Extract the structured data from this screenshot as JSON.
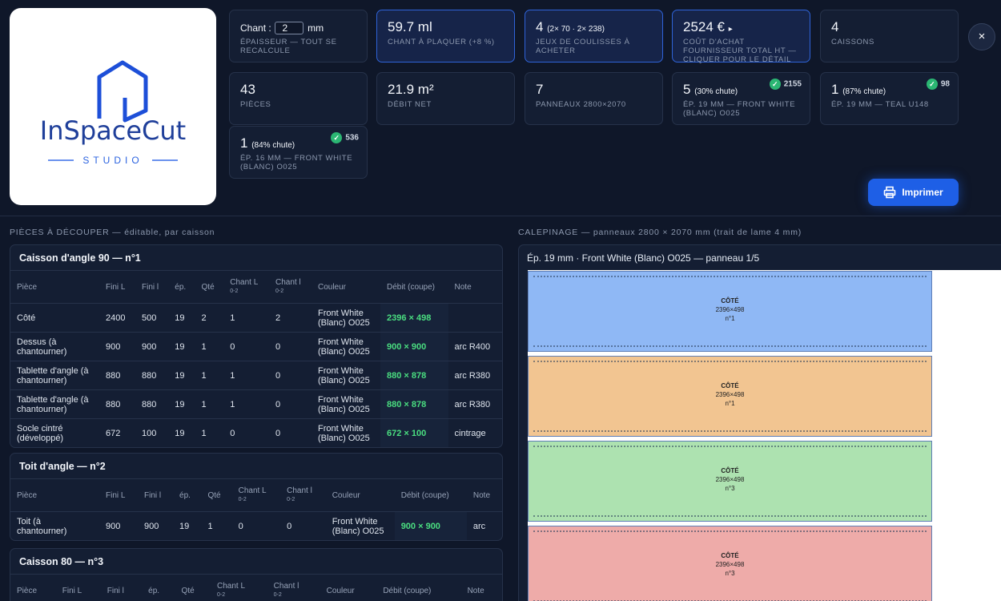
{
  "logo": {
    "name": "InSpaceCut",
    "sub": "STUDIO"
  },
  "stats": [
    {
      "prefix": "Chant :",
      "value": 2,
      "unit": "mm",
      "label": "ÉPAISSEUR — TOUT SE RECALCULE"
    },
    {
      "value": "59.7 ml",
      "label": "CHANT À PLAQUER (+8 %)",
      "highlight": true
    },
    {
      "value": 4,
      "small": "(2× 70 · 2× 238)",
      "label": "JEUX DE COULISSES À ACHETER",
      "highlight": true
    },
    {
      "value": "2524 €",
      "suffix": "▸",
      "label": "COÛT D'ACHAT FOURNISSEUR TOTAL HT — CLIQUER POUR LE DÉTAIL",
      "highlight": true
    },
    {
      "value": 4,
      "label": "CAISSONS"
    },
    {
      "value": 43,
      "label": "PIÈCES"
    },
    {
      "value": "21.9 m²",
      "label": "DÉBIT NET"
    },
    {
      "value": 7,
      "label": "PANNEAUX 2800×2070"
    },
    {
      "value": 5,
      "small": "(30% chute)",
      "badge": 2155,
      "label": "ÉP. 19 MM — FRONT WHITE (BLANC) O025"
    },
    {
      "value": 1,
      "small": "(87% chute)",
      "badge": 98,
      "label": "ÉP. 19 MM — TEAL U148"
    },
    {
      "value": 1,
      "small": "(84% chute)",
      "badge": 536,
      "label": "ÉP. 16 MM — FRONT WHITE (BLANC) O025"
    }
  ],
  "close": "×",
  "print": "Imprimer",
  "pieces": {
    "title": "PIÈCES À DÉCOUPER — éditable, par caisson",
    "columns": [
      {
        "text": "Pièce"
      },
      {
        "text": "Fini L"
      },
      {
        "text": "Fini l"
      },
      {
        "text": "ép."
      },
      {
        "text": "Qté"
      },
      {
        "text": "Chant L",
        "sub": "0-2"
      },
      {
        "text": "Chant l",
        "sub": "0-2"
      },
      {
        "text": "Couleur"
      },
      {
        "text": "Débit (coupe)"
      },
      {
        "text": "Note"
      }
    ],
    "groups": [
      {
        "title": "Caisson d'angle 90 — n°1",
        "rows": [
          [
            "Côté",
            2400,
            500,
            19,
            2,
            1,
            2,
            "Front White (Blanc) O025",
            "2396 × 498"
          ],
          [
            "Dessus (à chantourner)",
            900,
            900,
            19,
            1,
            0,
            0,
            "Front White (Blanc) O025",
            "900 × 900",
            "arc R400"
          ],
          [
            "Tablette d'angle (à chantourner)",
            880,
            880,
            19,
            1,
            1,
            0,
            "Front White (Blanc) O025",
            "880 × 878",
            "arc R380"
          ],
          [
            "Tablette d'angle (à chantourner)",
            880,
            880,
            19,
            1,
            1,
            0,
            "Front White (Blanc) O025",
            "880 × 878",
            "arc R380"
          ],
          [
            "Socle cintré (développé)",
            672,
            100,
            19,
            1,
            0,
            0,
            "Front White (Blanc) O025",
            "672 × 100",
            "cintrage"
          ]
        ]
      },
      {
        "title": "Toit d'angle — n°2",
        "rows": [
          [
            "Toit (à chantourner)",
            900,
            900,
            19,
            1,
            0,
            0,
            "Front White (Blanc) O025",
            "900 × 900",
            "arc"
          ]
        ]
      },
      {
        "title": "Caisson 80 — n°3",
        "rows": []
      }
    ]
  },
  "layout": {
    "title": "CALEPINAGE — panneaux 2800 × 2070 mm (trait de lame 4 mm)",
    "panel": "Ép. 19 mm · Front White (Blanc) O025 — panneau 1/5",
    "parts": [
      {
        "name": "CÔTÉ",
        "size": "2396×498",
        "num": "n°1",
        "color": "#8fb8f5"
      },
      {
        "name": "CÔTÉ",
        "size": "2396×498",
        "num": "n°1",
        "color": "#f2c591"
      },
      {
        "name": "CÔTÉ",
        "size": "2396×498",
        "num": "n°3",
        "color": "#ade2b0"
      },
      {
        "name": "CÔTÉ",
        "size": "2396×498",
        "num": "n°3",
        "color": "#eeaba9"
      }
    ]
  }
}
